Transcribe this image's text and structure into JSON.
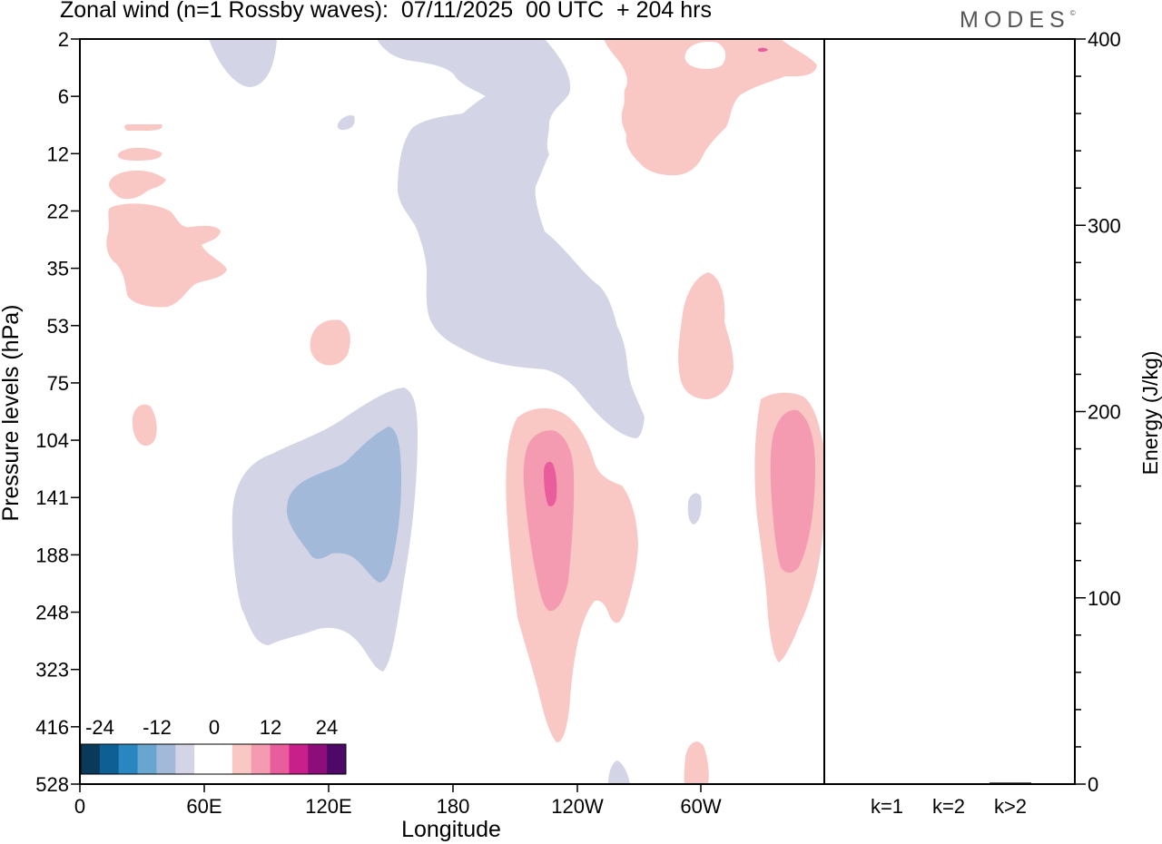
{
  "header": {
    "title": "Zonal wind (n=1 Rossby waves):  07/11/2025  00 UTC  + 204 hrs",
    "logo": "MODES",
    "logo_mark": "©"
  },
  "chart_data": {
    "type": "contour",
    "title": "Zonal wind (n=1 Rossby waves):  07/11/2025  00 UTC  + 204 hrs",
    "xlabel": "Longitude",
    "ylabel": "Pressure levels (hPa)",
    "y2label": "Energy (J/kg)",
    "x_ticks": [
      "0",
      "60E",
      "120E",
      "180",
      "120W",
      "60W"
    ],
    "y_ticks": [
      "2",
      "6",
      "12",
      "22",
      "35",
      "53",
      "75",
      "104",
      "141",
      "188",
      "248",
      "323",
      "416",
      "528"
    ],
    "y2_ticks": [
      "0",
      "100",
      "200",
      "300",
      "400"
    ],
    "y2_range": [
      0,
      400
    ],
    "energy_categories": [
      "k=1",
      "k=2",
      "k>2"
    ],
    "energy_values": [
      0.3,
      0.3,
      0.8
    ],
    "colorbar": {
      "labels": [
        "-24",
        "-12",
        "0",
        "12",
        "24"
      ],
      "colors": [
        "#0a3a5a",
        "#0d5f94",
        "#2a86c0",
        "#68a5cf",
        "#a2b9da",
        "#d3d4e6",
        "#ffffff",
        "#ffffff",
        "#f9c8c5",
        "#f49bb2",
        "#ea5d9c",
        "#c81f8a",
        "#8d0e7a",
        "#4e0868"
      ]
    },
    "regions": [
      {
        "name": "neg-weak-top-left",
        "level": "-6"
      },
      {
        "name": "neg-weak-upper-band",
        "level": "-6"
      },
      {
        "name": "neg-weak-small-blob",
        "level": "-6"
      },
      {
        "name": "neg-weak-trop-left",
        "level": "-6"
      },
      {
        "name": "neg-mid-trop-left",
        "level": "-12"
      },
      {
        "name": "pos-weak-strat-left",
        "level": "6"
      },
      {
        "name": "pos-weak-strat-small",
        "level": "6"
      },
      {
        "name": "pos-weak-upper-right",
        "level": "6"
      },
      {
        "name": "pos-weak-mid-right",
        "level": "6"
      },
      {
        "name": "pos-weak-trop-center",
        "level": "6"
      },
      {
        "name": "pos-mid-trop-center",
        "level": "12"
      },
      {
        "name": "pos-strong-trop-center",
        "level": "18"
      },
      {
        "name": "pos-weak-trop-right",
        "level": "6"
      },
      {
        "name": "pos-mid-trop-right",
        "level": "12"
      }
    ]
  }
}
